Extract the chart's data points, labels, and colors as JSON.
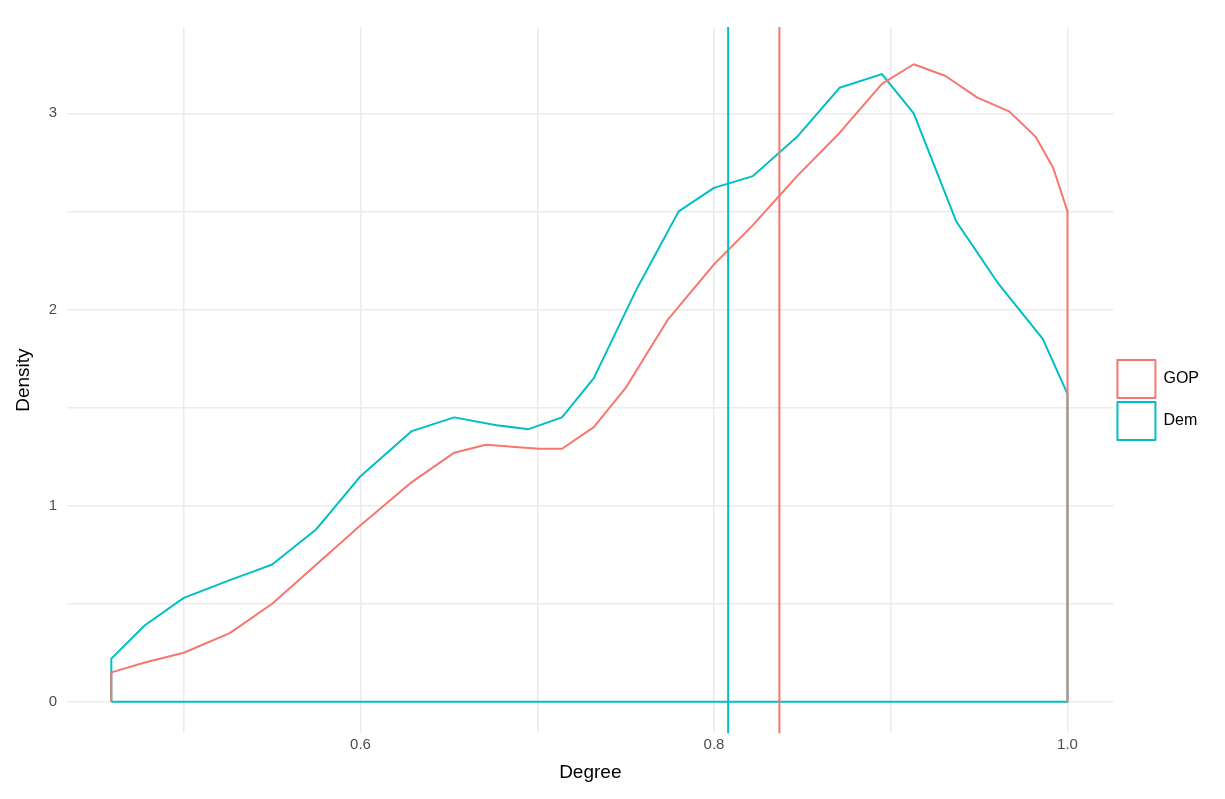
{
  "chart_data": {
    "type": "line",
    "xlabel": "Degree",
    "ylabel": "Density",
    "xlim": [
      0.434,
      1.026
    ],
    "ylim": [
      -0.16,
      3.44
    ],
    "xticks": [
      {
        "value": 0.5,
        "label": null
      },
      0.6,
      {
        "value": 0.7,
        "label": null
      },
      0.8,
      {
        "value": 0.9,
        "label": null
      },
      {
        "value": 1,
        "label": "1.0"
      }
    ],
    "yticks": [
      0,
      {
        "value": 0.5,
        "label": null
      },
      1,
      {
        "value": 1.5,
        "label": null
      },
      2,
      {
        "value": 2.5,
        "label": null
      },
      3
    ],
    "grid": true,
    "legend": "right",
    "marker": "none",
    "line_style": "solid",
    "series": [
      {
        "name": "GOP",
        "color": "#f8766d",
        "x": [
          0.459,
          0.459,
          0.478,
          0.5,
          0.526,
          0.55,
          0.575,
          0.6,
          0.629,
          0.653,
          0.671,
          0.701,
          0.714,
          0.732,
          0.75,
          0.774,
          0.8,
          0.822,
          0.847,
          0.871,
          0.895,
          0.913,
          0.931,
          0.949,
          0.967,
          0.982,
          0.992,
          1,
          1
        ],
        "values": [
          0,
          0.15,
          0.2,
          0.25,
          0.35,
          0.5,
          0.7,
          0.9,
          1.12,
          1.27,
          1.31,
          1.29,
          1.29,
          1.4,
          1.6,
          1.95,
          2.23,
          2.43,
          2.68,
          2.9,
          3.15,
          3.25,
          3.19,
          3.08,
          3.01,
          2.88,
          2.72,
          2.5,
          0
        ]
      },
      {
        "name": "Dem",
        "color": "#00bfc4",
        "x": [
          0.459,
          0.459,
          0.478,
          0.5,
          0.526,
          0.55,
          0.575,
          0.6,
          0.629,
          0.653,
          0.677,
          0.695,
          0.714,
          0.732,
          0.756,
          0.78,
          0.8,
          0.822,
          0.847,
          0.871,
          0.895,
          0.913,
          0.937,
          0.961,
          0.986,
          1,
          1
        ],
        "values": [
          0,
          0.22,
          0.39,
          0.53,
          0.62,
          0.7,
          0.88,
          1.15,
          1.38,
          1.45,
          1.41,
          1.39,
          1.45,
          1.65,
          2.1,
          2.5,
          2.62,
          2.68,
          2.88,
          3.13,
          3.2,
          3.0,
          2.45,
          2.13,
          1.85,
          1.57,
          0
        ]
      },
      {
        "color": "#00bfc4",
        "x": [
          0.459,
          1
        ],
        "values": [
          0,
          0
        ]
      }
    ],
    "ref_lines": [
      {
        "axis": "x",
        "value": 0.837,
        "color": "#f8766d",
        "line_style": "solid"
      },
      {
        "axis": "x",
        "value": 0.808,
        "color": "#00bfc4",
        "line_style": "solid"
      }
    ]
  }
}
